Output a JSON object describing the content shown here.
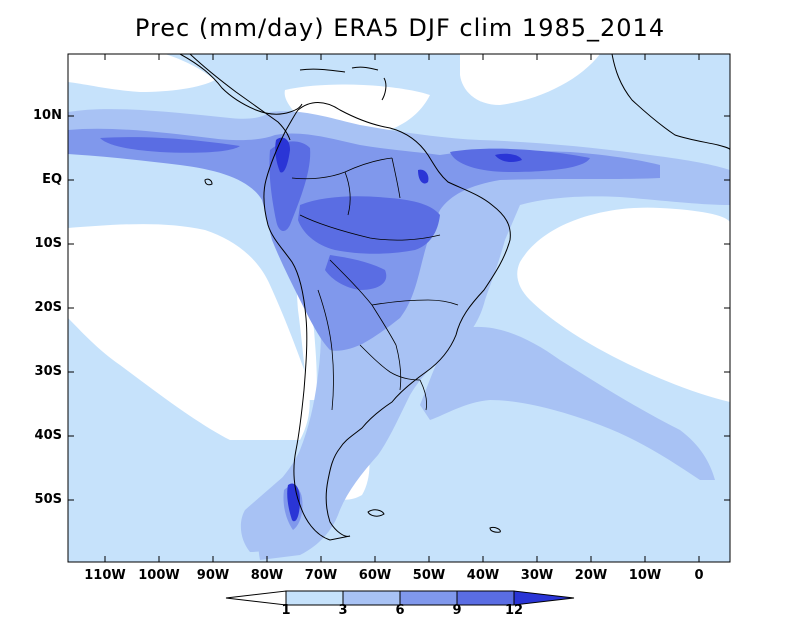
{
  "title": "Prec (mm/day) ERA5 DJF clim 1985_2014",
  "colors": {
    "below_1": "#ffffff",
    "c1_3": "#c6e2fb",
    "c3_6": "#a8c2f4",
    "c6_9": "#8098ec",
    "c9_12": "#5a6de3",
    "above_12": "#2a35d6",
    "land_white": "#ffffff",
    "border": "#000000"
  },
  "lat_labels": [
    "10N",
    "EQ",
    "10S",
    "20S",
    "30S",
    "40S",
    "50S"
  ],
  "lon_labels": [
    "110W",
    "100W",
    "90W",
    "80W",
    "70W",
    "60W",
    "50W",
    "40W",
    "30W",
    "20W",
    "10W",
    "0"
  ],
  "colorbar": {
    "ticks": [
      "1",
      "3",
      "6",
      "9",
      "12"
    ]
  },
  "chart_data": {
    "type": "heatmap",
    "variable": "Precipitation",
    "units": "mm/day",
    "title": "Prec (mm/day) ERA5 DJF clim 1985_2014",
    "lon_range": [
      -118,
      5
    ],
    "lat_range": [
      -58,
      20
    ],
    "levels": [
      1,
      3,
      6,
      9,
      12
    ]
  }
}
